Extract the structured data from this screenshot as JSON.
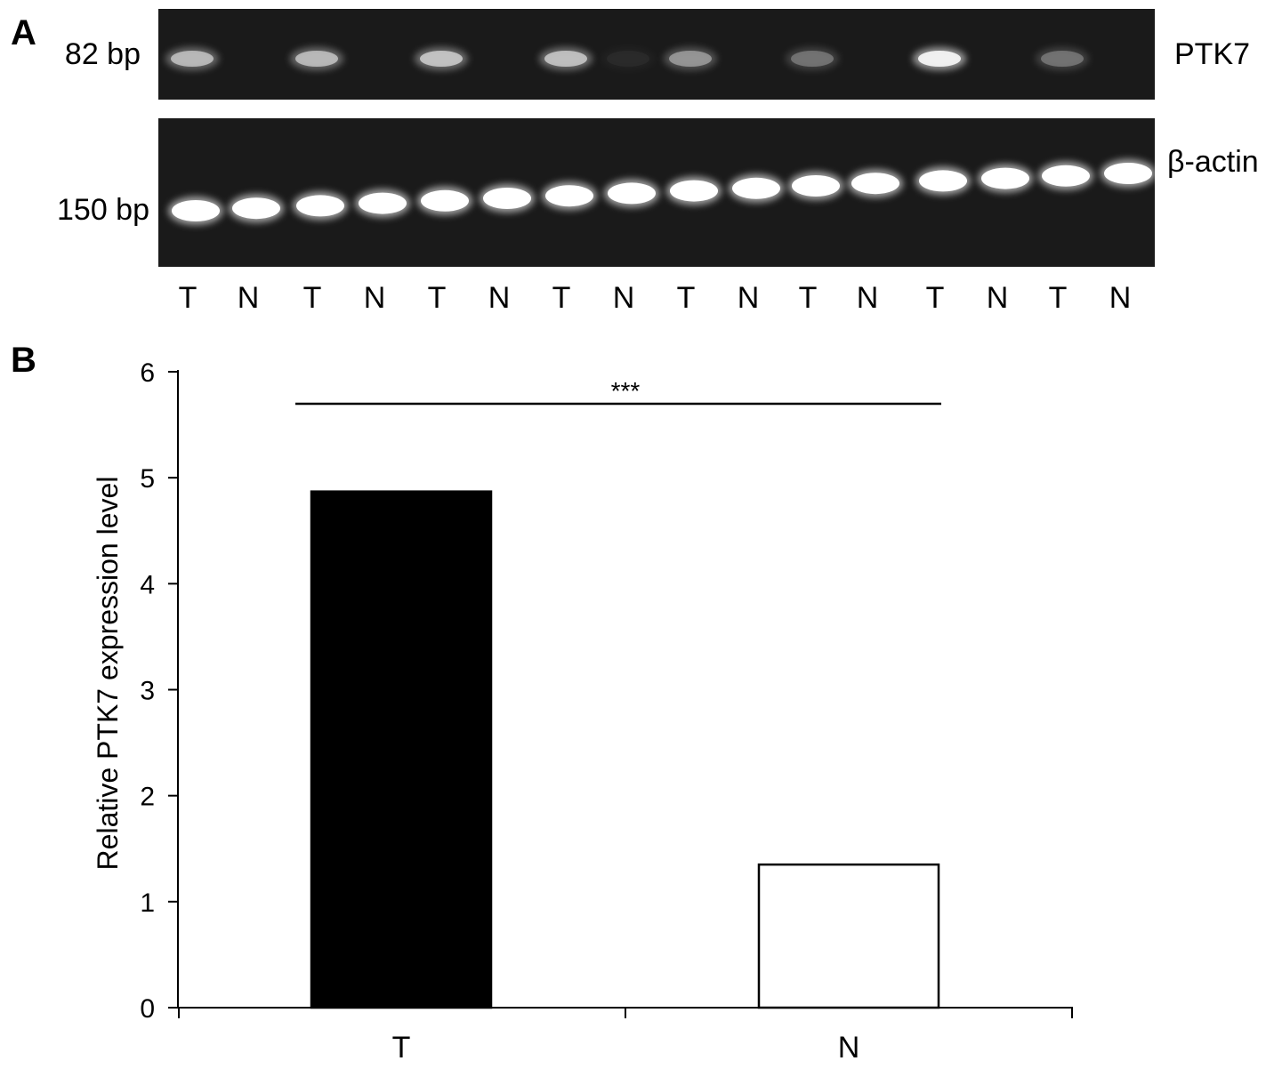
{
  "panel_a": {
    "label": "A",
    "ptk7_gel": {
      "size_label": "82 bp",
      "gene_label": "PTK7",
      "band_intensity": [
        0.62,
        0,
        0.62,
        0,
        0.68,
        0,
        0.66,
        0.05,
        0.45,
        0,
        0.3,
        0,
        1.0,
        0,
        0.3,
        0
      ]
    },
    "actin_gel": {
      "size_label": "150 bp",
      "gene_label": "β-actin",
      "band_intensity": [
        1,
        1,
        1,
        1,
        1,
        1,
        1,
        1,
        1,
        1,
        1,
        1,
        1,
        1,
        1,
        1
      ]
    },
    "lanes": [
      "T",
      "N",
      "T",
      "N",
      "T",
      "N",
      "T",
      "N",
      "T",
      "N",
      "T",
      "N",
      "T",
      "N",
      "T",
      "N"
    ]
  },
  "panel_b": {
    "label": "B"
  },
  "chart_data": {
    "type": "bar",
    "categories": [
      "T",
      "N"
    ],
    "values": [
      4.87,
      1.35
    ],
    "colors": [
      "#000000",
      "#ffffff"
    ],
    "title": "",
    "xlabel": "",
    "ylabel": "Relative PTK7 expression level",
    "ylim": [
      0,
      6
    ],
    "yticks": [
      0,
      1,
      2,
      3,
      4,
      5,
      6
    ],
    "grid": false,
    "annotation": {
      "text": "***",
      "between": [
        "T",
        "N"
      ]
    }
  }
}
